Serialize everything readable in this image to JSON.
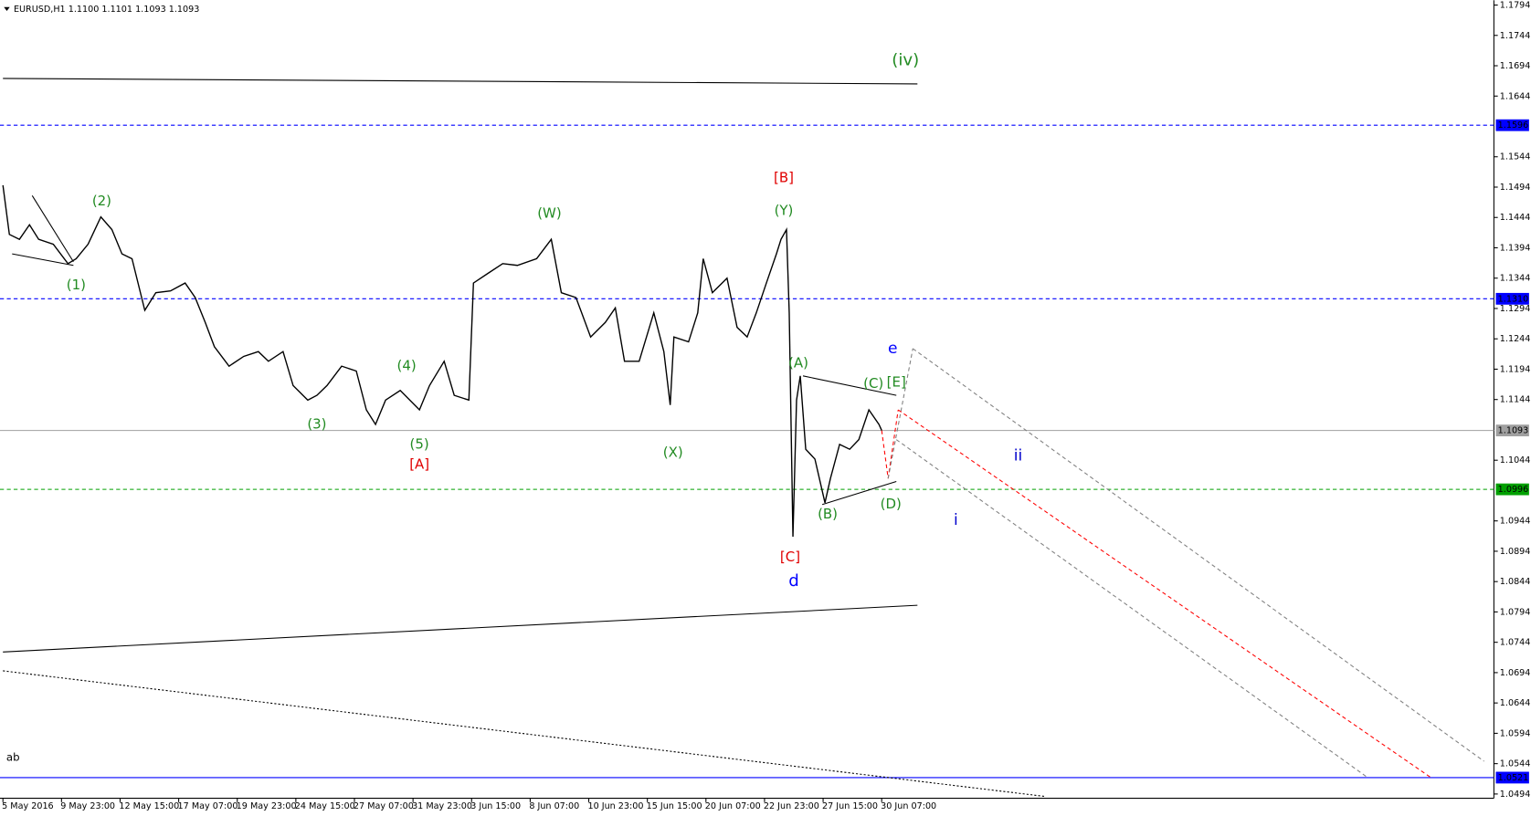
{
  "chart_data": {
    "type": "line",
    "title": "EURUSD,H1  1.1100 1.1101 1.1093 1.1093",
    "xlim": [
      -3.2,
      1628.8
    ],
    "ylim": [
      1.0487,
      1.1802
    ],
    "xticks": [
      {
        "value": 0,
        "label": "5 May 2016"
      },
      {
        "value": 64,
        "label": "9 May 23:00"
      },
      {
        "value": 128,
        "label": "12 May 15:00"
      },
      {
        "value": 192,
        "label": "17 May 07:00"
      },
      {
        "value": 256,
        "label": "19 May 23:00"
      },
      {
        "value": 320,
        "label": "24 May 15:00"
      },
      {
        "value": 384,
        "label": "27 May 07:00"
      },
      {
        "value": 448,
        "label": "31 May 23:00"
      },
      {
        "value": 512,
        "label": "3 Jun 15:00"
      },
      {
        "value": 576,
        "label": "8 Jun 07:00"
      },
      {
        "value": 640,
        "label": "10 Jun 23:00"
      },
      {
        "value": 704,
        "label": "15 Jun 15:00"
      },
      {
        "value": 768,
        "label": "20 Jun 07:00"
      },
      {
        "value": 832,
        "label": "22 Jun 23:00"
      },
      {
        "value": 896,
        "label": "27 Jun 15:00"
      },
      {
        "value": 960,
        "label": "30 Jun 07:00"
      }
    ],
    "yticks": [
      1.1794,
      1.1744,
      1.1694,
      1.1644,
      1.1544,
      1.1494,
      1.1444,
      1.1394,
      1.1344,
      1.1294,
      1.1244,
      1.1194,
      1.1144,
      1.1044,
      1.0944,
      1.0894,
      1.0844,
      1.0794,
      1.0744,
      1.0694,
      1.0644,
      1.0594,
      1.0544,
      1.0494
    ],
    "series": [
      {
        "name": "EURUSD",
        "color": "#000000",
        "x": [
          0,
          7,
          18,
          29,
          39,
          55,
          71,
          80,
          93,
          107,
          119,
          130,
          141,
          155,
          167,
          183,
          199,
          210,
          221,
          231,
          247,
          263,
          279,
          290,
          306,
          317,
          333,
          343,
          354,
          370,
          386,
          397,
          407,
          418,
          434,
          455,
          466,
          482,
          493,
          509,
          514,
          530,
          546,
          562,
          583,
          599,
          610,
          626,
          642,
          658,
          669,
          679,
          695,
          711,
          722,
          729,
          733,
          749,
          759,
          765,
          775,
          791,
          802,
          813,
          823,
          834,
          845,
          850,
          856,
          859,
          863,
          867,
          871,
          877,
          887,
          898,
          904,
          914,
          925,
          935,
          946,
          957,
          960
        ],
        "values": [
          1.1497,
          1.1416,
          1.1408,
          1.1432,
          1.1408,
          1.14,
          1.1368,
          1.1376,
          1.14,
          1.1445,
          1.1424,
          1.1384,
          1.1376,
          1.1291,
          1.132,
          1.1323,
          1.1336,
          1.1312,
          1.1271,
          1.1231,
          1.1199,
          1.1215,
          1.1223,
          1.1207,
          1.1223,
          1.1167,
          1.1143,
          1.1151,
          1.1167,
          1.1199,
          1.1191,
          1.1127,
          1.1103,
          1.1143,
          1.1159,
          1.1127,
          1.1167,
          1.1207,
          1.1151,
          1.1143,
          1.1336,
          1.1352,
          1.1368,
          1.1365,
          1.1376,
          1.1408,
          1.132,
          1.1312,
          1.1247,
          1.1271,
          1.1295,
          1.1207,
          1.1207,
          1.1287,
          1.1223,
          1.1135,
          1.1247,
          1.1239,
          1.1287,
          1.1376,
          1.132,
          1.1344,
          1.1263,
          1.1247,
          1.1287,
          1.1336,
          1.1384,
          1.1408,
          1.1424,
          1.1287,
          1.0918,
          1.1143,
          1.1183,
          1.1062,
          1.1046,
          1.0974,
          1.1014,
          1.107,
          1.1062,
          1.1078,
          1.1127,
          1.1103,
          1.1093
        ]
      }
    ],
    "levels": [
      {
        "value": 1.1596,
        "color": "#0000ff",
        "style": "dash"
      },
      {
        "value": 1.131,
        "label": "1.1310",
        "color": "#0000ff",
        "style": "dash"
      },
      {
        "value": 1.1093,
        "color": "#a0a0a0",
        "style": "solid"
      },
      {
        "value": 1.0996,
        "color": "#00a000",
        "style": "dash"
      },
      {
        "value": 1.0521,
        "color": "#0000ff",
        "style": "solid"
      }
    ],
    "trendlines": [
      {
        "x": [
          0,
          999
        ],
        "y": [
          1.1673,
          1.1664
        ],
        "color": "#000000",
        "style": "solid"
      },
      {
        "x": [
          0,
          999
        ],
        "y": [
          1.0728,
          1.0805
        ],
        "color": "#000000",
        "style": "solid"
      },
      {
        "x": [
          0,
          1138
        ],
        "y": [
          1.0697,
          1.049
        ],
        "color": "#000000",
        "style": "dot"
      },
      {
        "x": [
          32,
          77
        ],
        "y": [
          1.148,
          1.1371
        ],
        "color": "#000000",
        "style": "solid"
      },
      {
        "x": [
          10,
          77
        ],
        "y": [
          1.1384,
          1.1365
        ],
        "color": "#000000",
        "style": "solid"
      },
      {
        "x": [
          874,
          976
        ],
        "y": [
          1.1183,
          1.1151
        ],
        "color": "#000000",
        "style": "solid"
      },
      {
        "x": [
          895,
          976
        ],
        "y": [
          1.0971,
          1.1009
        ],
        "color": "#000000",
        "style": "solid"
      },
      {
        "x": [
          960,
          967,
          978
        ],
        "y": [
          1.1093,
          1.1014,
          1.1127
        ],
        "color": "#ff0000",
        "style": "dash"
      },
      {
        "x": [
          967,
          994
        ],
        "y": [
          1.1014,
          1.1228
        ],
        "color": "#808080",
        "style": "dash"
      },
      {
        "x": [
          994,
          1618
        ],
        "y": [
          1.1228,
          1.0548
        ],
        "color": "#808080",
        "style": "dash"
      },
      {
        "x": [
          978,
          1559
        ],
        "y": [
          1.1127,
          1.0522
        ],
        "color": "#ff0000",
        "style": "dash"
      },
      {
        "x": [
          976,
          1490
        ],
        "y": [
          1.1078,
          1.0522
        ],
        "color": "#808080",
        "style": "dash"
      }
    ],
    "annotations": [
      {
        "text": "(iv)",
        "x": 986,
        "y": 1.1702,
        "color": "#228b22",
        "size": 17
      },
      {
        "text": "[B]",
        "x": 853,
        "y": 1.1509,
        "color": "#e00000",
        "size": 14
      },
      {
        "text": "(Y)",
        "x": 853,
        "y": 1.1455,
        "color": "#228b22",
        "size": 14
      },
      {
        "text": "(2)",
        "x": 108,
        "y": 1.1471,
        "color": "#228b22",
        "size": 14
      },
      {
        "text": "(W)",
        "x": 597,
        "y": 1.145,
        "color": "#228b22",
        "size": 14
      },
      {
        "text": "(1)",
        "x": 80,
        "y": 1.1332,
        "color": "#228b22",
        "size": 14
      },
      {
        "text": "(4)",
        "x": 441,
        "y": 1.1199,
        "color": "#228b22",
        "size": 14
      },
      {
        "text": "(3)",
        "x": 343,
        "y": 1.1103,
        "color": "#228b22",
        "size": 14
      },
      {
        "text": "(5)",
        "x": 455,
        "y": 1.107,
        "color": "#228b22",
        "size": 14
      },
      {
        "text": "[A]",
        "x": 455,
        "y": 1.1037,
        "color": "#e00000",
        "size": 14
      },
      {
        "text": "(X)",
        "x": 732,
        "y": 1.1056,
        "color": "#228b22",
        "size": 14
      },
      {
        "text": "(A)",
        "x": 869,
        "y": 1.1204,
        "color": "#228b22",
        "size": 14
      },
      {
        "text": "(C)",
        "x": 951,
        "y": 1.117,
        "color": "#228b22",
        "size": 14
      },
      {
        "text": "[E]",
        "x": 976,
        "y": 1.1172,
        "color": "#228b22",
        "size": 14
      },
      {
        "text": "e",
        "x": 972,
        "y": 1.1228,
        "color": "#0000ff",
        "size": 16
      },
      {
        "text": "ii",
        "x": 1109,
        "y": 1.1051,
        "color": "#0000cc",
        "size": 16
      },
      {
        "text": "(B)",
        "x": 901,
        "y": 1.0955,
        "color": "#228b22",
        "size": 14
      },
      {
        "text": "(D)",
        "x": 970,
        "y": 1.0971,
        "color": "#228b22",
        "size": 14
      },
      {
        "text": "i",
        "x": 1041,
        "y": 1.0945,
        "color": "#0000cc",
        "size": 16
      },
      {
        "text": "[C]",
        "x": 860,
        "y": 1.0884,
        "color": "#e00000",
        "size": 14
      },
      {
        "text": "d",
        "x": 864,
        "y": 1.0844,
        "color": "#0000ff",
        "size": 17
      },
      {
        "text": "ab",
        "x": 11,
        "y": 1.0554,
        "color": "#000000",
        "size": 11
      }
    ]
  }
}
